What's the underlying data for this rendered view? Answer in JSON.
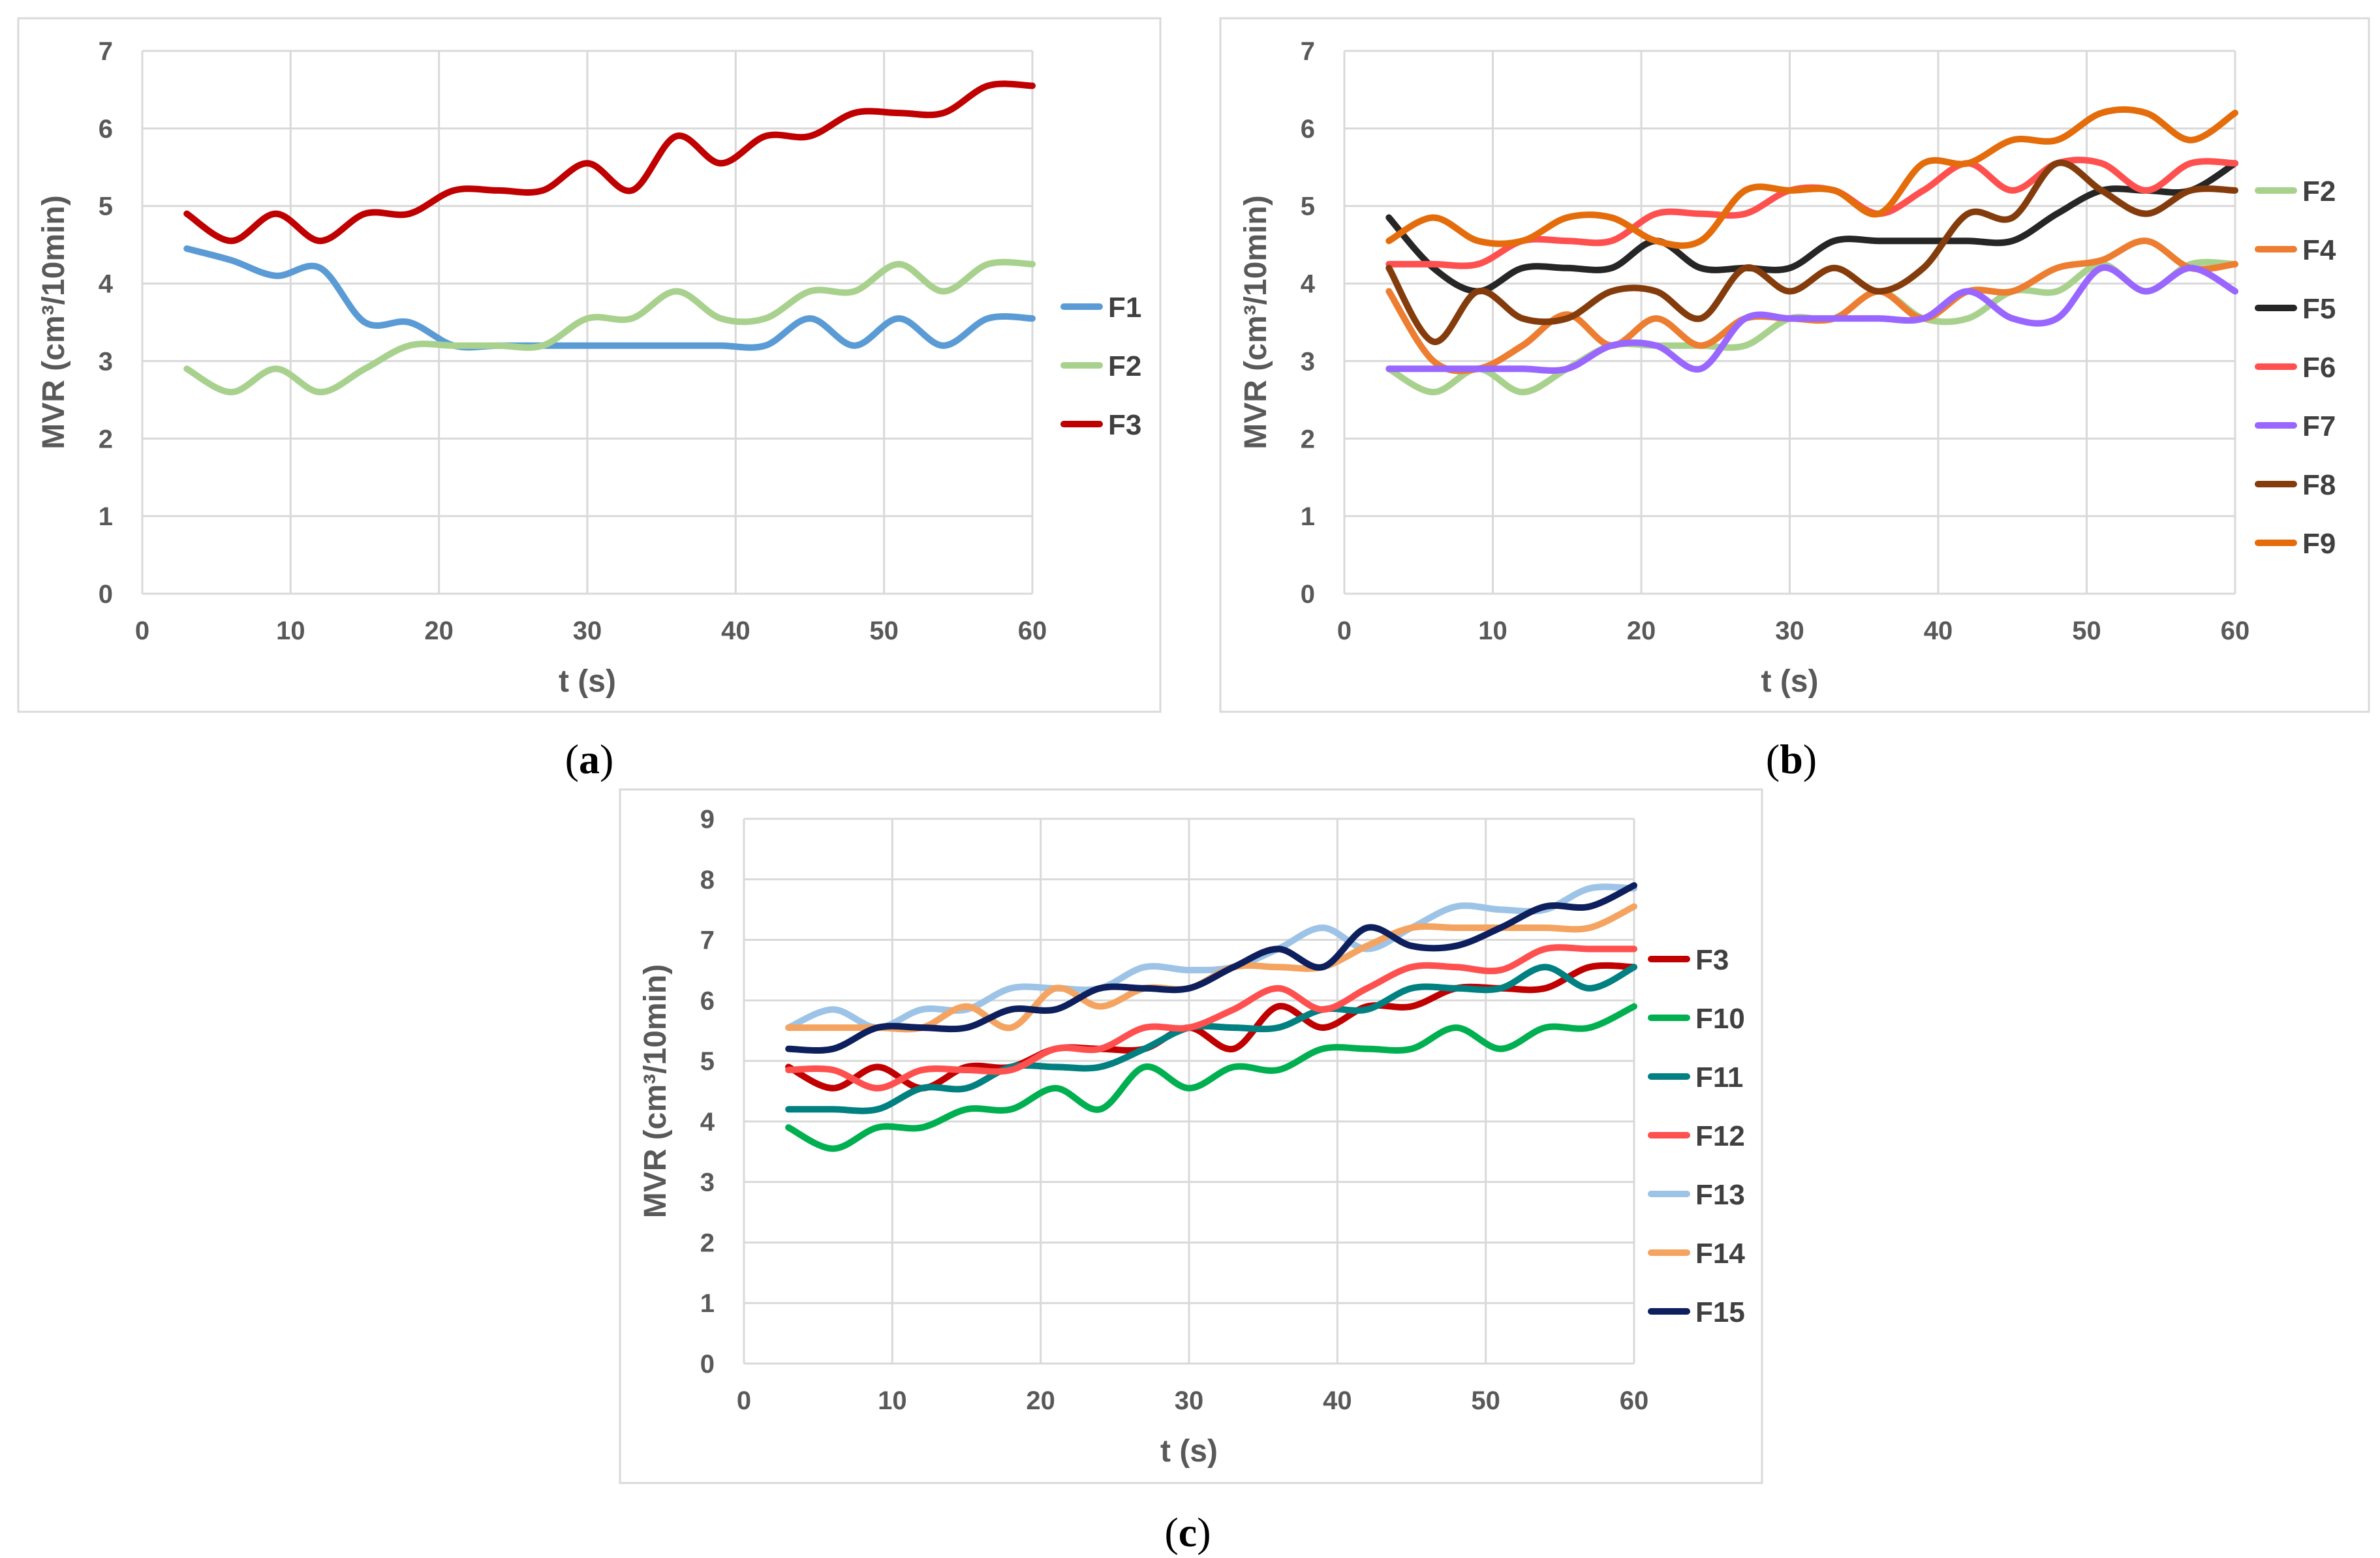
{
  "figure": {
    "panels": [
      "a",
      "b",
      "c"
    ]
  },
  "chart_data": [
    {
      "type": "line",
      "panel": "a",
      "caption": "(a)",
      "caption_letter": "a",
      "xlabel": "t (s)",
      "ylabel": "MVR (cm³/10min)",
      "xlim": [
        0,
        60
      ],
      "ylim": [
        0,
        7
      ],
      "xticks": [
        0,
        10,
        20,
        30,
        40,
        50,
        60
      ],
      "yticks": [
        0,
        1,
        2,
        3,
        4,
        5,
        6,
        7
      ],
      "x": [
        3,
        6,
        9,
        12,
        15,
        18,
        21,
        24,
        27,
        30,
        33,
        36,
        39,
        42,
        45,
        48,
        51,
        54,
        57,
        60
      ],
      "series": [
        {
          "name": "F1",
          "color": "#5b9bd5",
          "values": [
            4.45,
            4.3,
            4.1,
            4.2,
            3.5,
            3.5,
            3.2,
            3.2,
            3.2,
            3.2,
            3.2,
            3.2,
            3.2,
            3.2,
            3.55,
            3.2,
            3.55,
            3.2,
            3.55,
            3.55
          ]
        },
        {
          "name": "F2",
          "color": "#a9d18e",
          "values": [
            2.9,
            2.6,
            2.9,
            2.6,
            2.9,
            3.2,
            3.2,
            3.2,
            3.2,
            3.55,
            3.55,
            3.9,
            3.55,
            3.55,
            3.9,
            3.9,
            4.25,
            3.9,
            4.25,
            4.25
          ]
        },
        {
          "name": "F3",
          "color": "#c00000",
          "values": [
            4.9,
            4.55,
            4.9,
            4.55,
            4.9,
            4.9,
            5.2,
            5.2,
            5.2,
            5.55,
            5.2,
            5.9,
            5.55,
            5.9,
            5.9,
            6.2,
            6.2,
            6.2,
            6.55,
            6.55
          ]
        }
      ]
    },
    {
      "type": "line",
      "panel": "b",
      "caption": "(b)",
      "caption_letter": "b",
      "xlabel": "t (s)",
      "ylabel": "MVR (cm³/10min)",
      "xlim": [
        0,
        60
      ],
      "ylim": [
        0,
        7
      ],
      "xticks": [
        0,
        10,
        20,
        30,
        40,
        50,
        60
      ],
      "yticks": [
        0,
        1,
        2,
        3,
        4,
        5,
        6,
        7
      ],
      "x": [
        3,
        6,
        9,
        12,
        15,
        18,
        21,
        24,
        27,
        30,
        33,
        36,
        39,
        42,
        45,
        48,
        51,
        54,
        57,
        60
      ],
      "series": [
        {
          "name": "F2",
          "color": "#a9d18e",
          "values": [
            2.9,
            2.6,
            2.9,
            2.6,
            2.9,
            3.2,
            3.2,
            3.2,
            3.2,
            3.55,
            3.55,
            3.9,
            3.55,
            3.55,
            3.9,
            3.9,
            4.25,
            3.9,
            4.25,
            4.25
          ]
        },
        {
          "name": "F4",
          "color": "#ed7d31",
          "values": [
            3.9,
            3.0,
            2.9,
            3.2,
            3.6,
            3.2,
            3.55,
            3.2,
            3.55,
            3.55,
            3.55,
            3.9,
            3.55,
            3.9,
            3.9,
            4.2,
            4.3,
            4.55,
            4.2,
            4.25
          ]
        },
        {
          "name": "F5",
          "color": "#262626",
          "values": [
            4.85,
            4.2,
            3.9,
            4.2,
            4.2,
            4.2,
            4.55,
            4.2,
            4.2,
            4.2,
            4.55,
            4.55,
            4.55,
            4.55,
            4.55,
            4.9,
            5.2,
            5.2,
            5.2,
            5.55
          ]
        },
        {
          "name": "F6",
          "color": "#ff5050",
          "values": [
            4.25,
            4.25,
            4.25,
            4.55,
            4.55,
            4.55,
            4.9,
            4.9,
            4.9,
            5.2,
            5.2,
            4.9,
            5.2,
            5.55,
            5.2,
            5.55,
            5.55,
            5.2,
            5.55,
            5.55
          ]
        },
        {
          "name": "F7",
          "color": "#9966ff",
          "values": [
            2.9,
            2.9,
            2.9,
            2.9,
            2.9,
            3.2,
            3.2,
            2.9,
            3.55,
            3.55,
            3.55,
            3.55,
            3.55,
            3.9,
            3.55,
            3.55,
            4.2,
            3.9,
            4.2,
            3.9
          ]
        },
        {
          "name": "F8",
          "color": "#843c0c",
          "values": [
            4.2,
            3.25,
            3.9,
            3.55,
            3.55,
            3.9,
            3.9,
            3.55,
            4.2,
            3.9,
            4.2,
            3.9,
            4.2,
            4.9,
            4.85,
            5.55,
            5.2,
            4.9,
            5.2,
            5.2
          ]
        },
        {
          "name": "F9",
          "color": "#e46c0a",
          "values": [
            4.55,
            4.85,
            4.55,
            4.55,
            4.85,
            4.85,
            4.55,
            4.55,
            5.2,
            5.2,
            5.2,
            4.9,
            5.55,
            5.55,
            5.85,
            5.85,
            6.2,
            6.2,
            5.85,
            6.2
          ]
        }
      ]
    },
    {
      "type": "line",
      "panel": "c",
      "caption": "(c)",
      "caption_letter": "c",
      "xlabel": "t (s)",
      "ylabel": "MVR (cm³/10min)",
      "xlim": [
        0,
        60
      ],
      "ylim": [
        0,
        9
      ],
      "xticks": [
        0,
        10,
        20,
        30,
        40,
        50,
        60
      ],
      "yticks": [
        0,
        1,
        2,
        3,
        4,
        5,
        6,
        7,
        8,
        9
      ],
      "x": [
        3,
        6,
        9,
        12,
        15,
        18,
        21,
        24,
        27,
        30,
        33,
        36,
        39,
        42,
        45,
        48,
        51,
        54,
        57,
        60
      ],
      "series": [
        {
          "name": "F3",
          "color": "#c00000",
          "values": [
            4.9,
            4.55,
            4.9,
            4.55,
            4.9,
            4.9,
            5.2,
            5.2,
            5.2,
            5.55,
            5.2,
            5.9,
            5.55,
            5.9,
            5.9,
            6.2,
            6.2,
            6.2,
            6.55,
            6.55
          ]
        },
        {
          "name": "F10",
          "color": "#00b050",
          "values": [
            3.9,
            3.55,
            3.9,
            3.9,
            4.2,
            4.2,
            4.55,
            4.2,
            4.9,
            4.55,
            4.9,
            4.85,
            5.2,
            5.2,
            5.2,
            5.55,
            5.2,
            5.55,
            5.55,
            5.9
          ]
        },
        {
          "name": "F11",
          "color": "#008080",
          "values": [
            4.2,
            4.2,
            4.2,
            4.55,
            4.55,
            4.9,
            4.9,
            4.9,
            5.2,
            5.55,
            5.55,
            5.55,
            5.85,
            5.85,
            6.2,
            6.2,
            6.2,
            6.55,
            6.2,
            6.55
          ]
        },
        {
          "name": "F12",
          "color": "#ff5050",
          "values": [
            4.85,
            4.85,
            4.55,
            4.85,
            4.85,
            4.85,
            5.2,
            5.2,
            5.55,
            5.55,
            5.85,
            6.2,
            5.85,
            6.2,
            6.55,
            6.55,
            6.5,
            6.85,
            6.85,
            6.85
          ]
        },
        {
          "name": "F13",
          "color": "#9dc3e6",
          "values": [
            5.55,
            5.85,
            5.55,
            5.85,
            5.85,
            6.2,
            6.2,
            6.2,
            6.55,
            6.5,
            6.55,
            6.85,
            7.2,
            6.85,
            7.2,
            7.55,
            7.5,
            7.5,
            7.85,
            7.85
          ]
        },
        {
          "name": "F14",
          "color": "#f4a460",
          "values": [
            5.55,
            5.55,
            5.55,
            5.55,
            5.9,
            5.55,
            6.2,
            5.9,
            6.2,
            6.2,
            6.55,
            6.55,
            6.55,
            6.9,
            7.2,
            7.2,
            7.2,
            7.2,
            7.2,
            7.55
          ]
        },
        {
          "name": "F15",
          "color": "#0d1f5c",
          "values": [
            5.2,
            5.2,
            5.55,
            5.55,
            5.55,
            5.85,
            5.85,
            6.2,
            6.2,
            6.2,
            6.55,
            6.85,
            6.55,
            7.2,
            6.9,
            6.9,
            7.2,
            7.55,
            7.55,
            7.9
          ]
        }
      ]
    }
  ]
}
